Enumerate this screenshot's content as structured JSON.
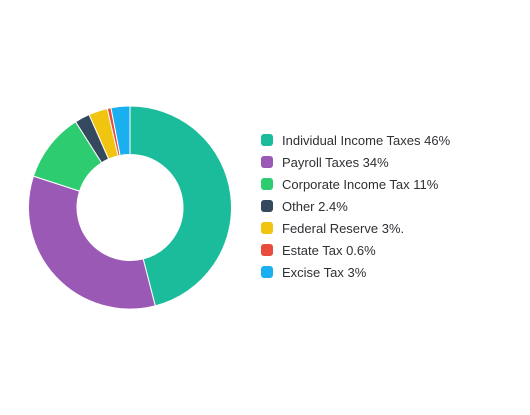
{
  "chart_data": {
    "type": "pie",
    "variant": "donut",
    "title": "",
    "legend_position": "right",
    "slices": [
      {
        "label": "Individual Income Taxes 46%",
        "value": 46,
        "color": "#1abc9c"
      },
      {
        "label": "Payroll Taxes 34%",
        "value": 34,
        "color": "#9b59b6"
      },
      {
        "label": "Corporate Income Tax 11%",
        "value": 11,
        "color": "#2ecc71"
      },
      {
        "label": "Other 2.4%",
        "value": 2.4,
        "color": "#34495e"
      },
      {
        "label": "Federal Reserve 3%.",
        "value": 3,
        "color": "#f1c40f"
      },
      {
        "label": "Estate Tax 0.6%",
        "value": 0.6,
        "color": "#e74c3c"
      },
      {
        "label": "Excise Tax 3%",
        "value": 3,
        "color": "#1ab0f0"
      }
    ]
  }
}
